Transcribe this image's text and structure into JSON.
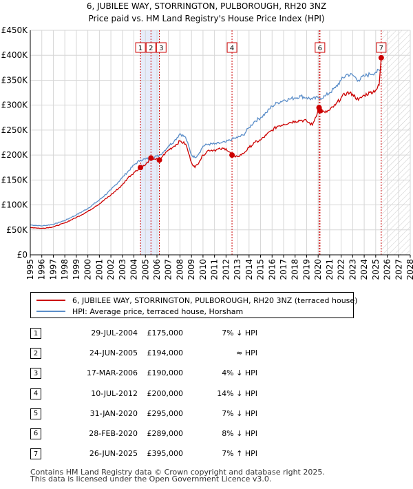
{
  "chart_data": {
    "type": "line",
    "title": "6, JUBILEE WAY, STORRINGTON, PULBOROUGH, RH20 3NZ",
    "subtitle": "Price paid vs. HM Land Registry's House Price Index (HPI)",
    "xlim": [
      1995,
      2028
    ],
    "ylim": [
      0,
      450000
    ],
    "x_ticks": [
      "1995",
      "1996",
      "1997",
      "1998",
      "1999",
      "2000",
      "2001",
      "2002",
      "2003",
      "2004",
      "2005",
      "2006",
      "2007",
      "2008",
      "2009",
      "2010",
      "2011",
      "2012",
      "2013",
      "2014",
      "2015",
      "2016",
      "2017",
      "2018",
      "2019",
      "2020",
      "2021",
      "2022",
      "2023",
      "2024",
      "2025",
      "2026",
      "2027",
      "2028"
    ],
    "y_ticks": [
      {
        "value": 0,
        "label": "£0"
      },
      {
        "value": 50000,
        "label": "£50K"
      },
      {
        "value": 100000,
        "label": "£100K"
      },
      {
        "value": 150000,
        "label": "£150K"
      },
      {
        "value": 200000,
        "label": "£200K"
      },
      {
        "value": 250000,
        "label": "£250K"
      },
      {
        "value": 300000,
        "label": "£300K"
      },
      {
        "value": 350000,
        "label": "£350K"
      },
      {
        "value": 400000,
        "label": "£400K"
      },
      {
        "value": 450000,
        "label": "£450K"
      }
    ],
    "shaded_range": [
      2004.57,
      2006.21
    ],
    "future_hatch_from": 2025.48,
    "series": [
      {
        "name": "6, JUBILEE WAY, STORRINGTON, PULBOROUGH, RH20 3NZ (terraced house)",
        "color": "#cc0000",
        "points": [
          [
            1995,
            55000
          ],
          [
            1995.5,
            54000
          ],
          [
            1996,
            53000
          ],
          [
            1997,
            56000
          ],
          [
            1998,
            64000
          ],
          [
            1999,
            75000
          ],
          [
            2000,
            87000
          ],
          [
            2000.7,
            98000
          ],
          [
            2001,
            102000
          ],
          [
            2002,
            120000
          ],
          [
            2003,
            140000
          ],
          [
            2003.5,
            155000
          ],
          [
            2004,
            165000
          ],
          [
            2004.57,
            175000
          ],
          [
            2005,
            180000
          ],
          [
            2005.48,
            194000
          ],
          [
            2005.8,
            192000
          ],
          [
            2006.21,
            190000
          ],
          [
            2006.5,
            198000
          ],
          [
            2007,
            210000
          ],
          [
            2007.5,
            218000
          ],
          [
            2008,
            228000
          ],
          [
            2008.5,
            222000
          ],
          [
            2009,
            185000
          ],
          [
            2009.3,
            175000
          ],
          [
            2009.7,
            188000
          ],
          [
            2010,
            200000
          ],
          [
            2010.5,
            210000
          ],
          [
            2011,
            210000
          ],
          [
            2011.5,
            212000
          ],
          [
            2012,
            213000
          ],
          [
            2012.52,
            200000
          ],
          [
            2012.8,
            196000
          ],
          [
            2013,
            197000
          ],
          [
            2013.5,
            203000
          ],
          [
            2014,
            215000
          ],
          [
            2014.5,
            225000
          ],
          [
            2015,
            230000
          ],
          [
            2015.5,
            240000
          ],
          [
            2016,
            250000
          ],
          [
            2016.5,
            258000
          ],
          [
            2017,
            262000
          ],
          [
            2017.5,
            265000
          ],
          [
            2018,
            268000
          ],
          [
            2018.5,
            270000
          ],
          [
            2019,
            268000
          ],
          [
            2019.5,
            260000
          ],
          [
            2020.08,
            295000
          ],
          [
            2020.16,
            289000
          ],
          [
            2020.6,
            285000
          ],
          [
            2021,
            290000
          ],
          [
            2021.5,
            300000
          ],
          [
            2022,
            315000
          ],
          [
            2022.5,
            325000
          ],
          [
            2023,
            322000
          ],
          [
            2023.5,
            310000
          ],
          [
            2024,
            320000
          ],
          [
            2024.5,
            325000
          ],
          [
            2025,
            330000
          ],
          [
            2025.3,
            340000
          ],
          [
            2025.48,
            395000
          ]
        ]
      },
      {
        "name": "HPI: Average price, terraced house, Horsham",
        "color": "#5b8ec9",
        "points": [
          [
            1995,
            60000
          ],
          [
            1995.5,
            59000
          ],
          [
            1996,
            58000
          ],
          [
            1997,
            61000
          ],
          [
            1998,
            69000
          ],
          [
            1999,
            80000
          ],
          [
            2000,
            93000
          ],
          [
            2001,
            110000
          ],
          [
            2002,
            130000
          ],
          [
            2003,
            155000
          ],
          [
            2004,
            180000
          ],
          [
            2004.57,
            190000
          ],
          [
            2005,
            192000
          ],
          [
            2005.48,
            194000
          ],
          [
            2006,
            198000
          ],
          [
            2006.21,
            199000
          ],
          [
            2006.5,
            205000
          ],
          [
            2007,
            218000
          ],
          [
            2007.5,
            228000
          ],
          [
            2008,
            243000
          ],
          [
            2008.5,
            235000
          ],
          [
            2009,
            200000
          ],
          [
            2009.3,
            195000
          ],
          [
            2009.7,
            205000
          ],
          [
            2010,
            218000
          ],
          [
            2010.5,
            222000
          ],
          [
            2011,
            222000
          ],
          [
            2011.5,
            224000
          ],
          [
            2012,
            226000
          ],
          [
            2012.52,
            232000
          ],
          [
            2013,
            235000
          ],
          [
            2013.5,
            240000
          ],
          [
            2014,
            255000
          ],
          [
            2014.5,
            268000
          ],
          [
            2015,
            275000
          ],
          [
            2015.5,
            285000
          ],
          [
            2016,
            298000
          ],
          [
            2016.5,
            305000
          ],
          [
            2017,
            310000
          ],
          [
            2017.5,
            312000
          ],
          [
            2018,
            315000
          ],
          [
            2018.5,
            318000
          ],
          [
            2019,
            315000
          ],
          [
            2019.5,
            312000
          ],
          [
            2020,
            315000
          ],
          [
            2020.16,
            314000
          ],
          [
            2020.6,
            318000
          ],
          [
            2021,
            325000
          ],
          [
            2021.5,
            335000
          ],
          [
            2022,
            350000
          ],
          [
            2022.5,
            362000
          ],
          [
            2023,
            360000
          ],
          [
            2023.5,
            350000
          ],
          [
            2024,
            358000
          ],
          [
            2024.5,
            362000
          ],
          [
            2025,
            366000
          ],
          [
            2025.48,
            370000
          ]
        ]
      }
    ],
    "sales": [
      {
        "id": "1",
        "label": "1",
        "x": 2004.57,
        "value": 175000,
        "date": "29-JUL-2004",
        "price": "£175,000",
        "hpi": "7% ↓ HPI"
      },
      {
        "id": "2",
        "label": "2",
        "x": 2005.48,
        "value": 194000,
        "date": "24-JUN-2005",
        "price": "£194,000",
        "hpi": "≈ HPI"
      },
      {
        "id": "3",
        "label": "3",
        "x": 2006.21,
        "value": 190000,
        "date": "17-MAR-2006",
        "price": "£190,000",
        "hpi": "4% ↓ HPI"
      },
      {
        "id": "4",
        "label": "4",
        "x": 2012.52,
        "value": 200000,
        "date": "10-JUL-2012",
        "price": "£200,000",
        "hpi": "14% ↓ HPI"
      },
      {
        "id": "5",
        "label": "5",
        "x": 2020.08,
        "value": 295000,
        "date": "31-JAN-2020",
        "price": "£295,000",
        "hpi": "7% ↓ HPI"
      },
      {
        "id": "6",
        "label": "6",
        "x": 2020.16,
        "value": 289000,
        "date": "28-FEB-2020",
        "price": "£289,000",
        "hpi": "8% ↓ HPI"
      },
      {
        "id": "7",
        "label": "7",
        "x": 2025.48,
        "value": 395000,
        "date": "26-JUN-2025",
        "price": "£395,000",
        "hpi": "7% ↑ HPI"
      }
    ],
    "boxed_markers": [
      "1",
      "2",
      "3",
      "4",
      "6",
      "7"
    ]
  },
  "legend": {
    "property_label": "6, JUBILEE WAY, STORRINGTON, PULBOROUGH, RH20 3NZ (terraced house)",
    "hpi_label": "HPI: Average price, terraced house, Horsham"
  },
  "footer": {
    "line1": "Contains HM Land Registry data © Crown copyright and database right 2025.",
    "line2": "This data is licensed under the Open Government Licence v3.0."
  }
}
